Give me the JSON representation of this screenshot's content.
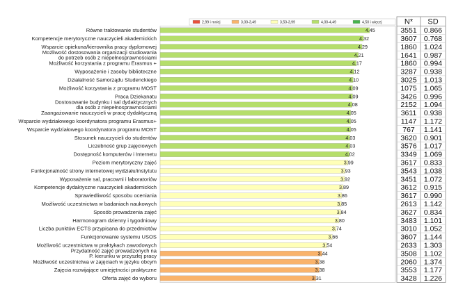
{
  "chart_data": {
    "type": "bar",
    "orientation": "horizontal",
    "legend": {
      "placement": "top",
      "items": [
        {
          "label": "2,99 i mniej",
          "color": "#e8503a"
        },
        {
          "label": "3,00-3,49",
          "color": "#f9b36b"
        },
        {
          "label": "3,50-3,99",
          "color": "#ffffb8"
        },
        {
          "label": "4,00-4,49",
          "color": "#b5de6b"
        },
        {
          "label": "4,50 i więcej",
          "color": "#46b34c"
        }
      ]
    },
    "columns": {
      "n": "N*",
      "sd": "SD"
    },
    "xlim": [
      0,
      5
    ],
    "rows": [
      {
        "label": "Równe traktowanie studentów",
        "value": "4.45",
        "v": 4.45,
        "n": "3551",
        "sd": "0.866",
        "color": "#b5de6b"
      },
      {
        "label": "Kompetencje merytoryczne nauczycieli akademickich",
        "value": "4.32",
        "v": 4.32,
        "n": "3607",
        "sd": "0.768",
        "color": "#b5de6b"
      },
      {
        "label": "Wsparcie opiekuna/kierownika pracy dyplomowej",
        "value": "4.29",
        "v": 4.29,
        "n": "1860",
        "sd": "1.024",
        "color": "#b5de6b"
      },
      {
        "label": "Możliwość dostosowania organizacji studiowania do potrzeb osób z niepełnosprawnościami",
        "value": "4.21",
        "v": 4.21,
        "n": "1641",
        "sd": "0.987",
        "color": "#b5de6b"
      },
      {
        "label": "Możliwość korzystania z programu Erasmus +",
        "value": "4.17",
        "v": 4.17,
        "n": "1860",
        "sd": "0.994",
        "color": "#b5de6b"
      },
      {
        "label": "Wyposażenie i zasoby biblioteczne",
        "value": "4.12",
        "v": 4.12,
        "n": "3287",
        "sd": "0.938",
        "color": "#b5de6b"
      },
      {
        "label": "Działalność Samorządu Studenckiego",
        "value": "4.10",
        "v": 4.1,
        "n": "3025",
        "sd": "1.013",
        "color": "#b5de6b"
      },
      {
        "label": "Możliwość korzystania z programu MOST",
        "value": "4.09",
        "v": 4.09,
        "n": "1075",
        "sd": "1.065",
        "color": "#b5de6b"
      },
      {
        "label": "Praca Dziekanatu",
        "value": "4.09",
        "v": 4.09,
        "n": "3426",
        "sd": "0.996",
        "color": "#b5de6b"
      },
      {
        "label": "Dostosowanie budynku i sal dydaktycznych dla osób z niepełnosprawnościami",
        "value": "4.08",
        "v": 4.08,
        "n": "2152",
        "sd": "1.094",
        "color": "#b5de6b"
      },
      {
        "label": "Zaangażowanie nauczycieli w pracę dydaktyczną",
        "value": "4.05",
        "v": 4.05,
        "n": "3611",
        "sd": "0.938",
        "color": "#b5de6b"
      },
      {
        "label": "Wsparcie wydziałowego koordynatora programu Erasmus+",
        "value": "4.05",
        "v": 4.05,
        "n": "1147",
        "sd": "1.172",
        "color": "#b5de6b"
      },
      {
        "label": "Wsparcie wydziałowego koordynatora programu MOST",
        "value": "4.05",
        "v": 4.05,
        "n": "767",
        "sd": "1.141",
        "color": "#b5de6b"
      },
      {
        "label": "Stosunek nauczycieli do studentów",
        "value": "4.03",
        "v": 4.03,
        "n": "3620",
        "sd": "0.901",
        "color": "#b5de6b"
      },
      {
        "label": "Liczebność grup zajęciowych",
        "value": "4.03",
        "v": 4.03,
        "n": "3576",
        "sd": "1.017",
        "color": "#b5de6b"
      },
      {
        "label": "Dostępność komputerów i Internetu",
        "value": "4.02",
        "v": 4.02,
        "n": "3349",
        "sd": "1.069",
        "color": "#b5de6b"
      },
      {
        "label": "Poziom merytoryczny zajęć",
        "value": "3.99",
        "v": 3.99,
        "n": "3617",
        "sd": "0.833",
        "color": "#ffffb8"
      },
      {
        "label": "Funkcjonalność strony internetowej wydziału/instytutu",
        "value": "3.93",
        "v": 3.93,
        "n": "3543",
        "sd": "1.038",
        "color": "#ffffb8"
      },
      {
        "label": "Wyposażenie sal, pracowni i laboratoriów",
        "value": "3.92",
        "v": 3.92,
        "n": "3451",
        "sd": "1.072",
        "color": "#ffffb8"
      },
      {
        "label": "Kompetencje dydaktyczne nauczycieli akademickich",
        "value": "3.89",
        "v": 3.89,
        "n": "3612",
        "sd": "0.915",
        "color": "#ffffb8"
      },
      {
        "label": "Sprawiedliwość sposobu oceniania",
        "value": "3.86",
        "v": 3.86,
        "n": "3617",
        "sd": "0.990",
        "color": "#ffffb8"
      },
      {
        "label": "Możliwość uczestnictwa w badaniach naukowych",
        "value": "3.85",
        "v": 3.85,
        "n": "2613",
        "sd": "1.142",
        "color": "#ffffb8"
      },
      {
        "label": "Sposób prowadzenia zajęć",
        "value": "3.84",
        "v": 3.84,
        "n": "3627",
        "sd": "0.834",
        "color": "#ffffb8"
      },
      {
        "label": "Harmonogram dzienny i tygodniowy",
        "value": "3.80",
        "v": 3.8,
        "n": "3483",
        "sd": "1.101",
        "color": "#ffffb8"
      },
      {
        "label": "Liczba punktów ECTS przypisana do przedmiotów",
        "value": "3.74",
        "v": 3.74,
        "n": "3010",
        "sd": "1.052",
        "color": "#ffffb8"
      },
      {
        "label": "Funkcjonowanie systemu USOS",
        "value": "3.66",
        "v": 3.66,
        "n": "3607",
        "sd": "1.144",
        "color": "#ffffb8"
      },
      {
        "label": "Możliwość uczestnictwa w praktykach zawodowych",
        "value": "3.54",
        "v": 3.54,
        "n": "2633",
        "sd": "1.303",
        "color": "#ffffb8"
      },
      {
        "label": "Przydatność zajęć prowadzonych na P. kierunku w przyszłej pracy",
        "value": "3.44",
        "v": 3.44,
        "n": "3508",
        "sd": "1.102",
        "color": "#f9b36b"
      },
      {
        "label": "Możliwość uczestnictwa w zajęciach w języku obcym",
        "value": "3.38",
        "v": 3.38,
        "n": "2060",
        "sd": "1.374",
        "color": "#f9b36b"
      },
      {
        "label": "Zajęcia rozwijające umiejętności praktyczne",
        "value": "3.38",
        "v": 3.38,
        "n": "3553",
        "sd": "1.177",
        "color": "#f9b36b"
      },
      {
        "label": "Oferta zajęć do wyboru",
        "value": "3.31",
        "v": 3.31,
        "n": "3428",
        "sd": "1.226",
        "color": "#f9b36b"
      }
    ]
  }
}
